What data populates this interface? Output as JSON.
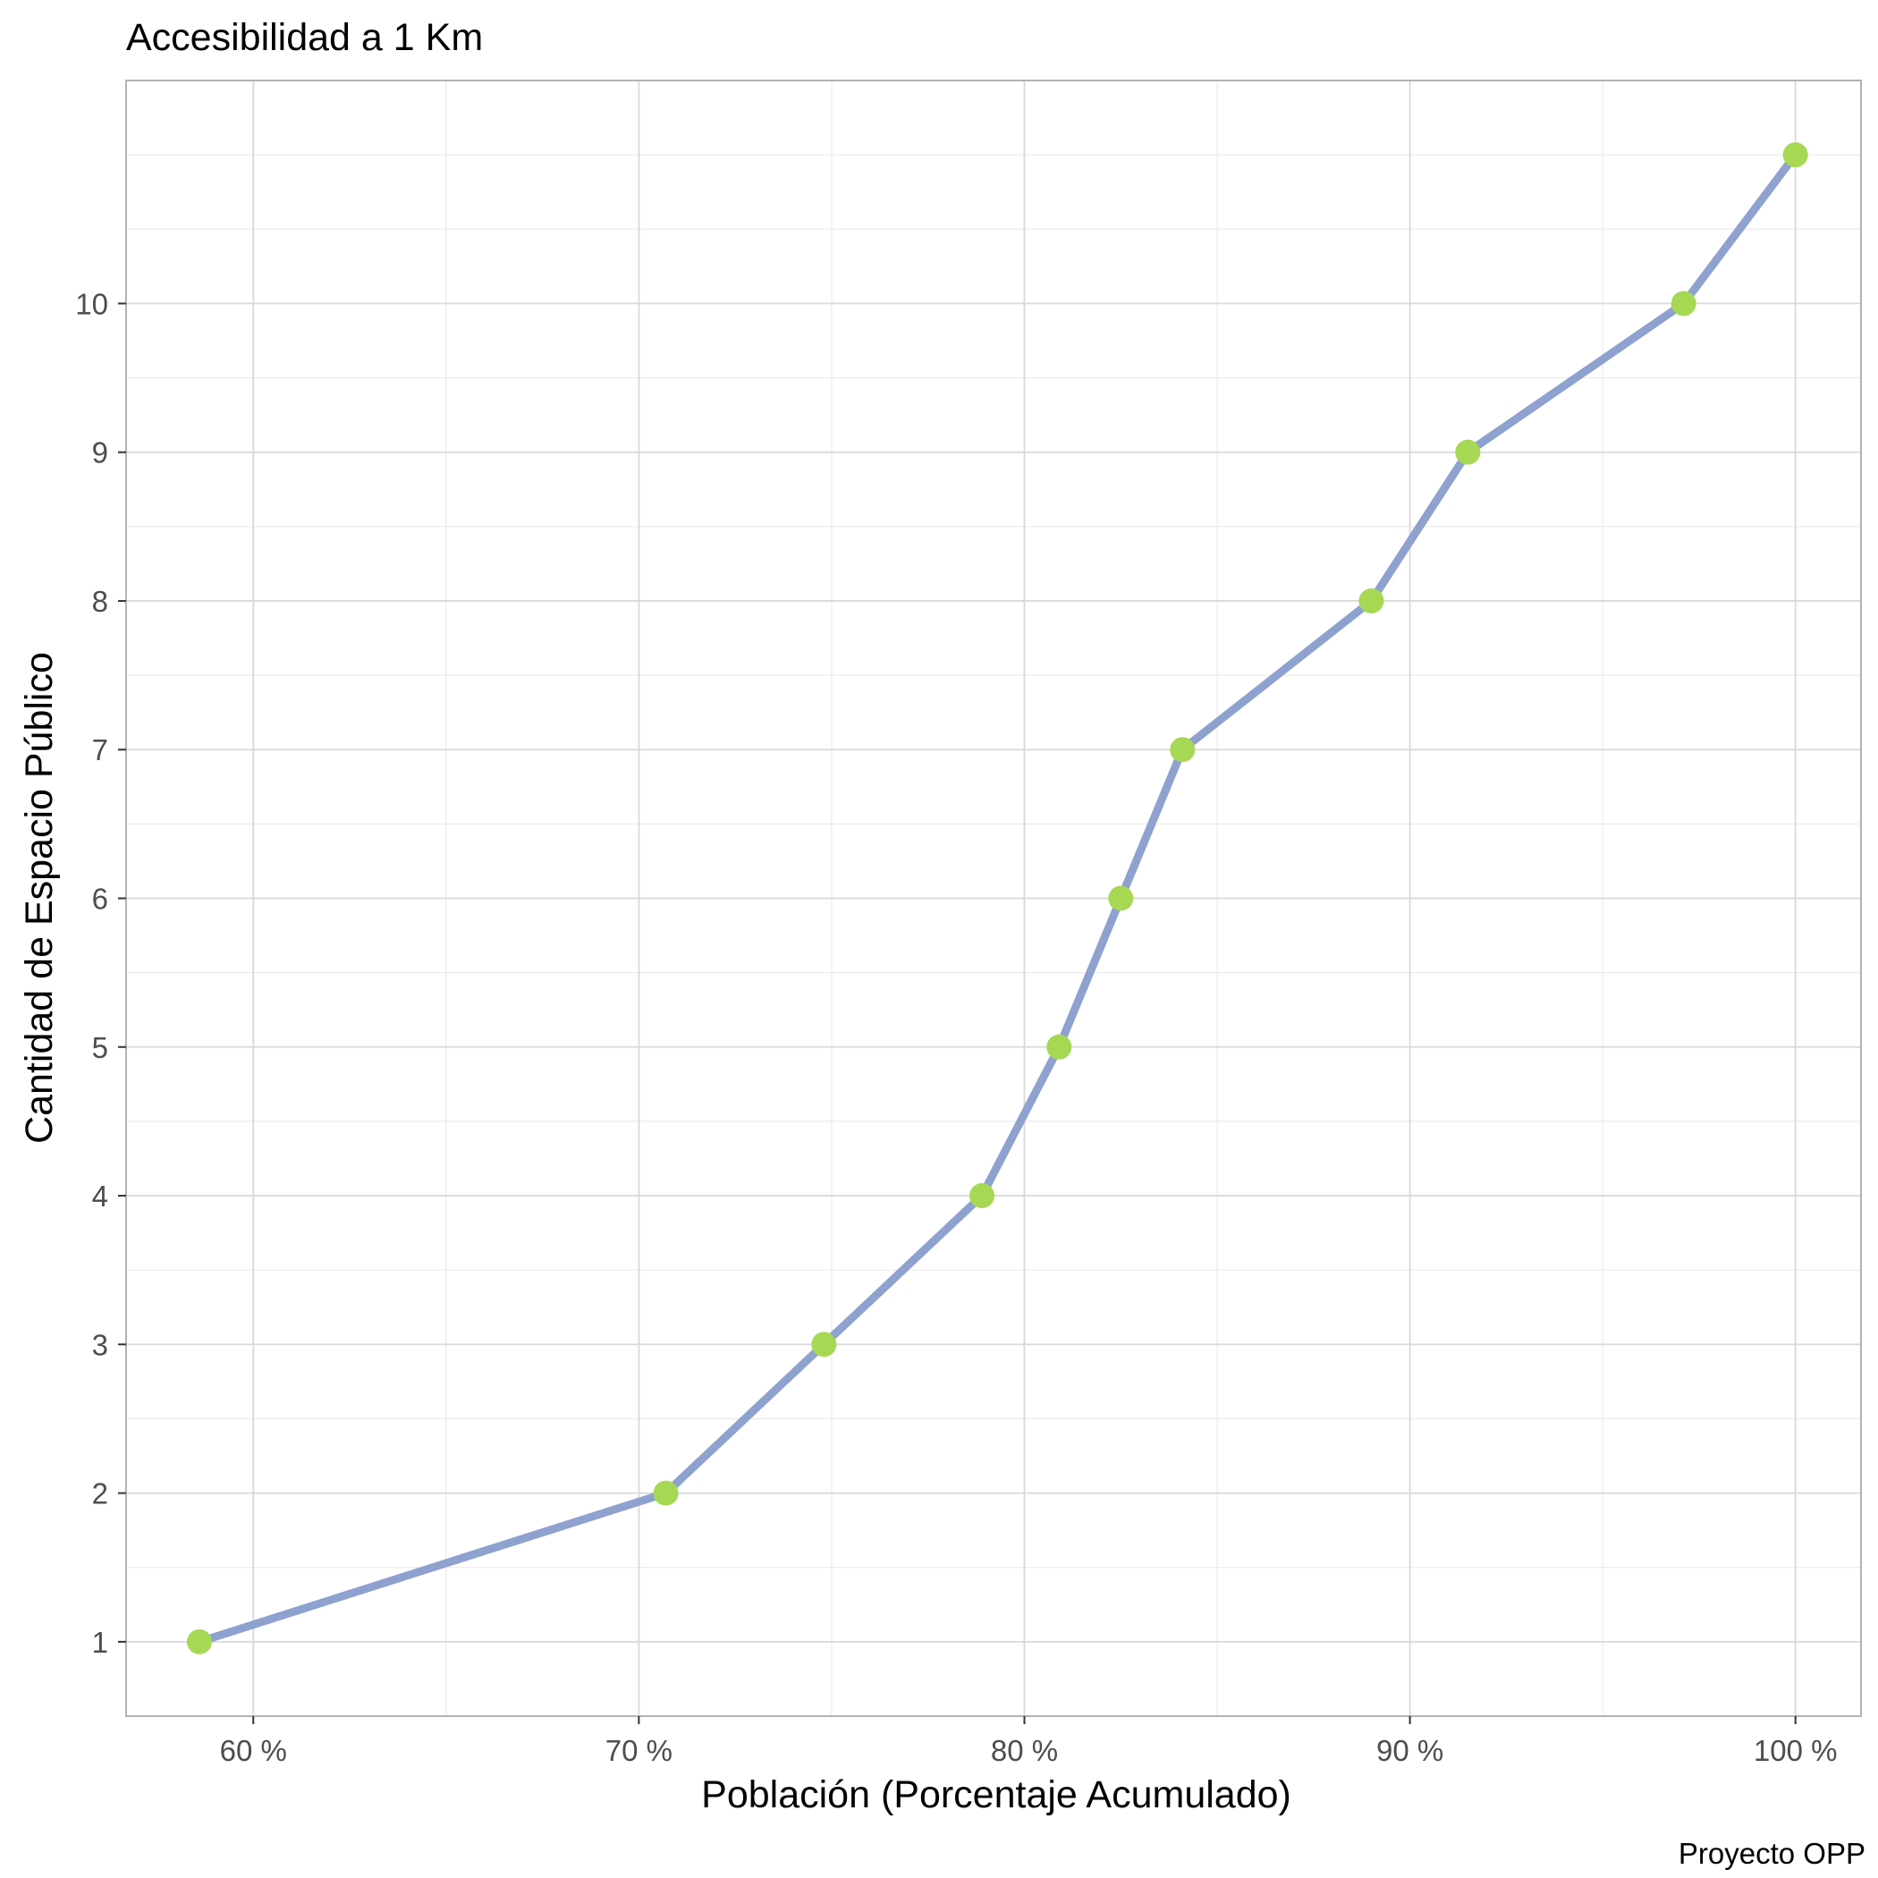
{
  "chart_data": {
    "type": "line",
    "title": "Accesibilidad a 1 Km",
    "xlabel": "Población (Porcentaje Acumulado)",
    "ylabel": "Cantidad de Espacio Público",
    "caption": "Proyecto OPP",
    "x_tick_values": [
      60,
      70,
      80,
      90,
      100
    ],
    "x_tick_labels": [
      "60 %",
      "70 %",
      "80 %",
      "90 %",
      "100 %"
    ],
    "y_tick_values": [
      1,
      2,
      3,
      4,
      5,
      6,
      7,
      8,
      9,
      10
    ],
    "y_tick_labels": [
      "1",
      "2",
      "3",
      "4",
      "5",
      "6",
      "7",
      "8",
      "9",
      "10"
    ],
    "xlim": [
      56.7,
      101.7
    ],
    "ylim": [
      0.5,
      11.5
    ],
    "grid": true,
    "legend": "none",
    "series": [
      {
        "x": [
          58.6,
          70.7,
          74.8,
          78.9,
          80.9,
          82.5,
          84.1,
          89.0,
          91.5,
          97.1,
          100.0
        ],
        "y": [
          1,
          2,
          3,
          4,
          5,
          6,
          7,
          8,
          9,
          10,
          11
        ]
      }
    ],
    "colors": {
      "line": "#8EA1CF",
      "point": "#A6D854",
      "major_grid": "#D9D9D9",
      "minor_grid": "#EBEBEB",
      "panel_border": "#B3B3B3"
    }
  }
}
